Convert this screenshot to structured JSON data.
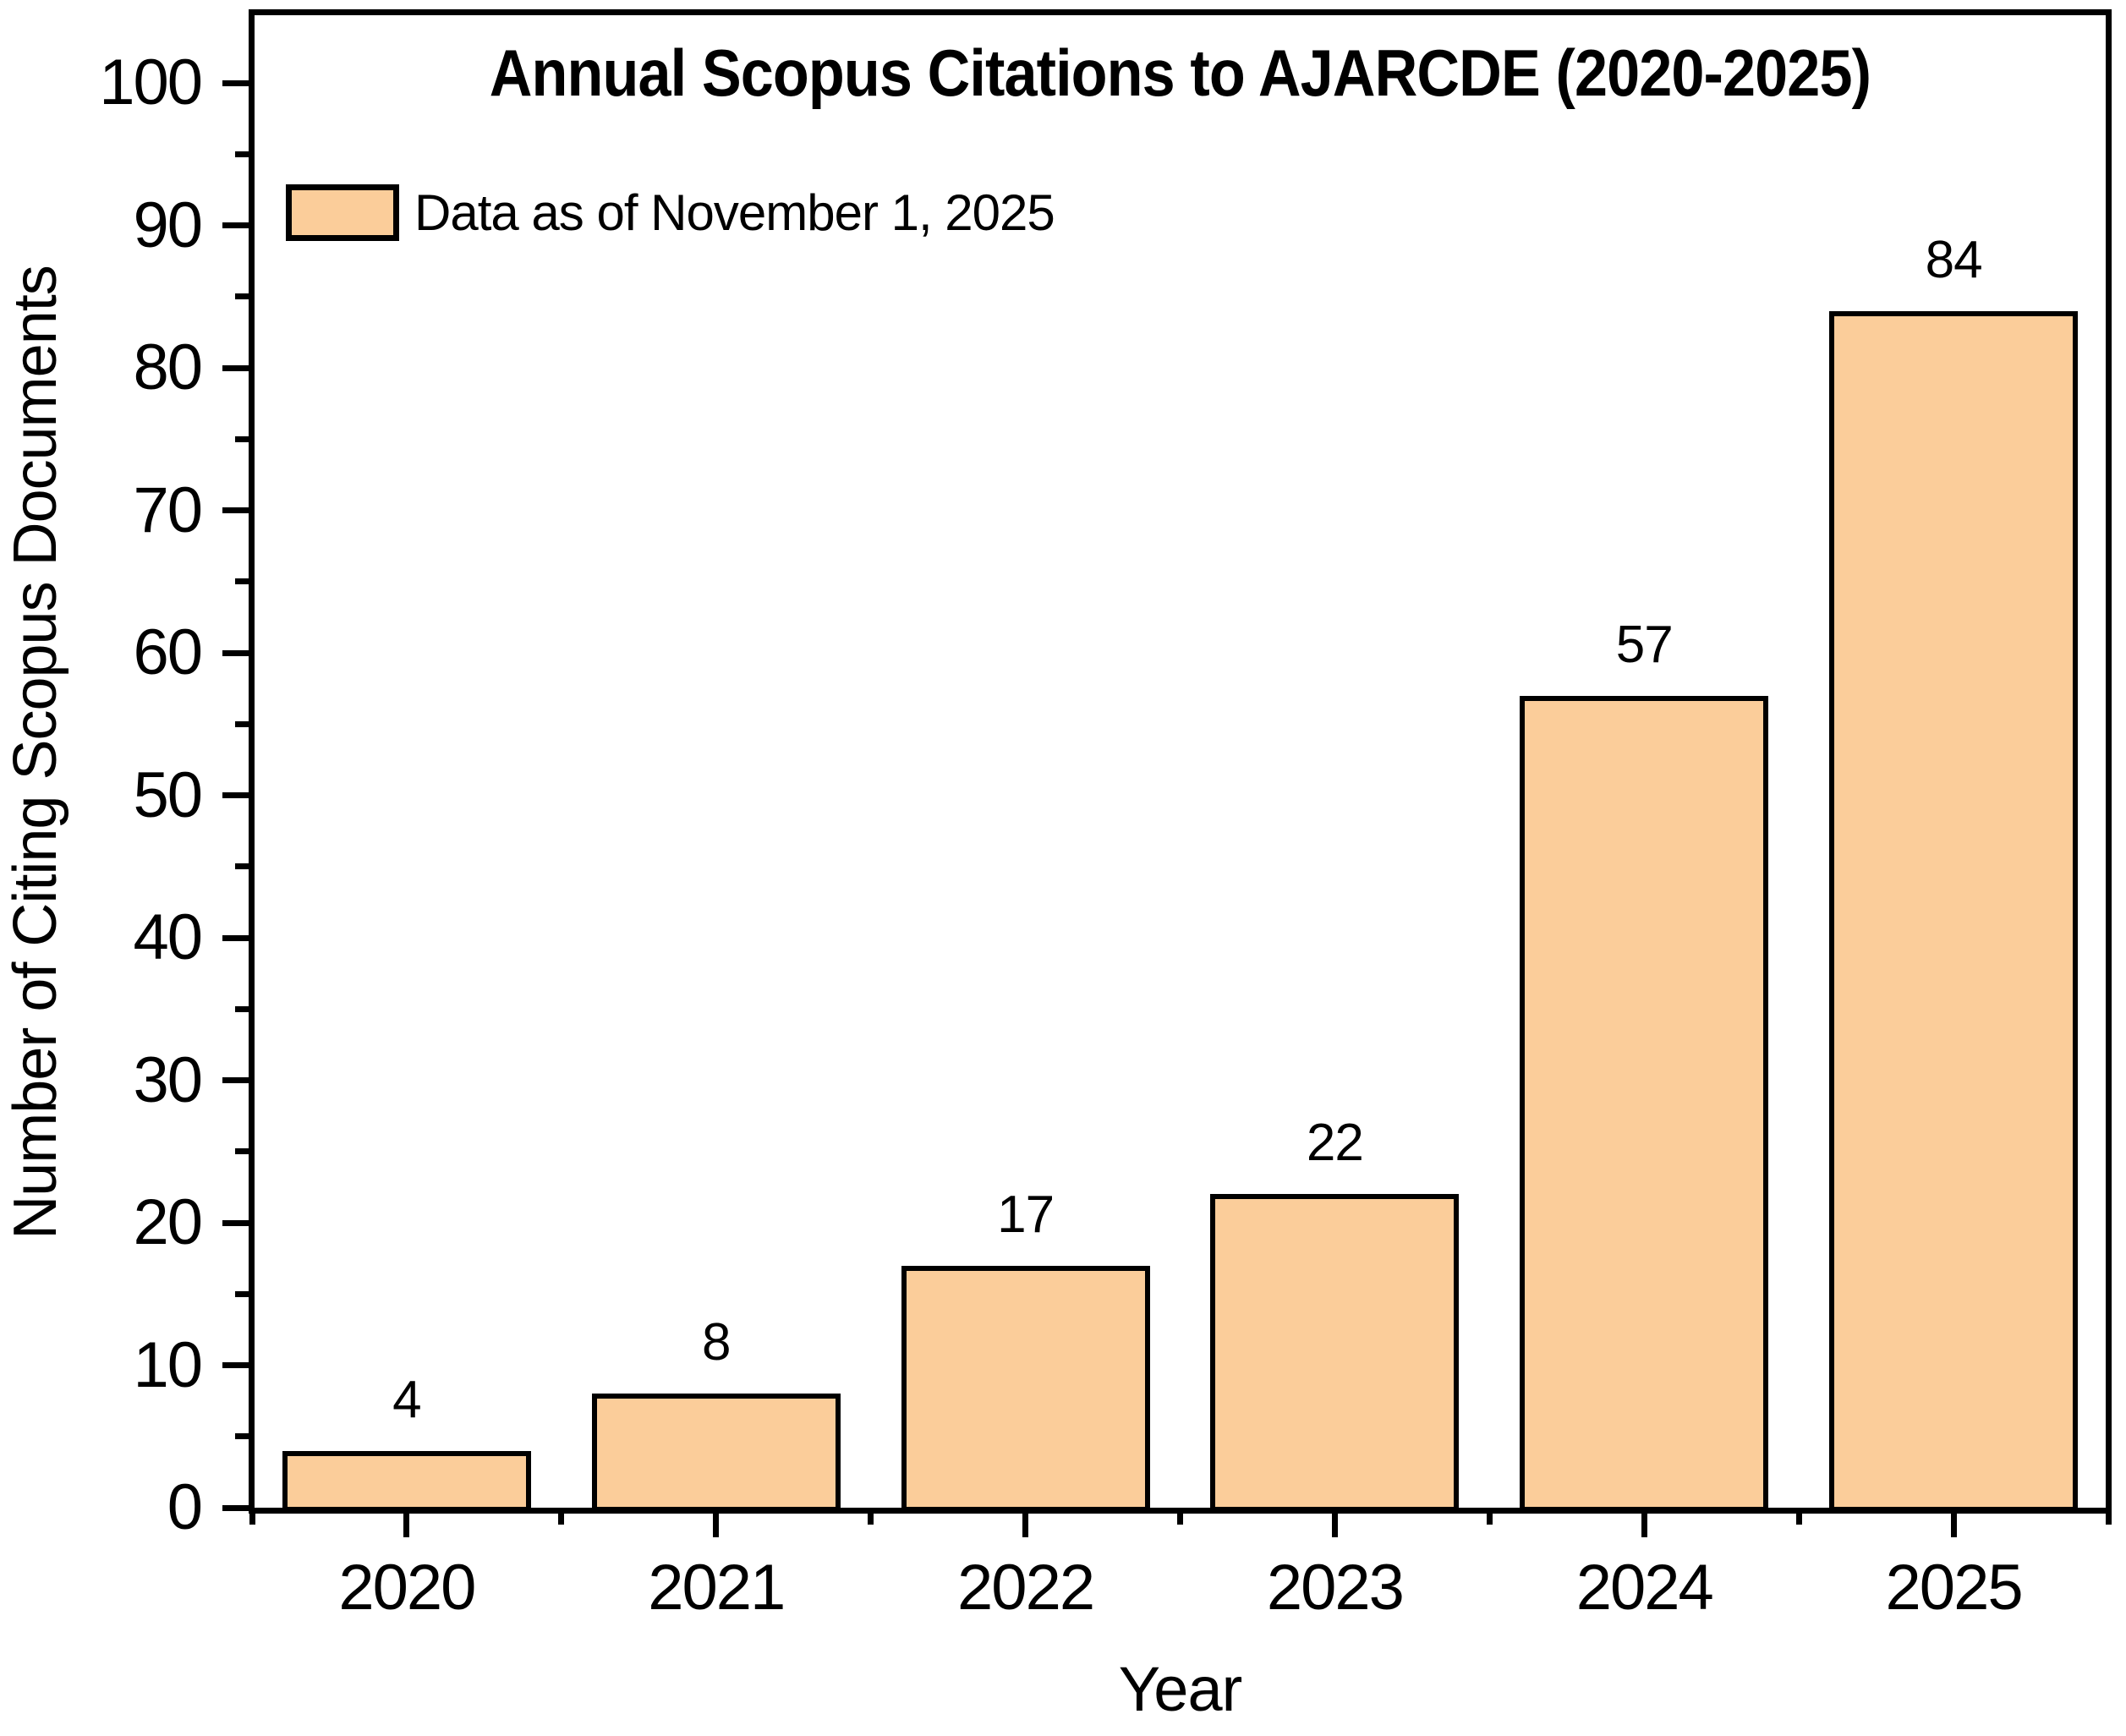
{
  "chart_data": {
    "type": "bar",
    "title": "Annual Scopus Citations to AJARCDE (2020-2025)",
    "categories": [
      "2020",
      "2021",
      "2022",
      "2023",
      "2024",
      "2025"
    ],
    "values": [
      4,
      8,
      17,
      22,
      57,
      84
    ],
    "value_labels": [
      "4",
      "8",
      "17",
      "22",
      "57",
      "84"
    ],
    "xlabel": "Year",
    "ylabel": "Number of Citing Scopus Documents",
    "ylim": [
      0,
      105
    ],
    "yticks": [
      0,
      10,
      20,
      30,
      40,
      50,
      60,
      70,
      80,
      90,
      100
    ],
    "minor_yticks": [
      5,
      15,
      25,
      35,
      45,
      55,
      65,
      75,
      85,
      95
    ],
    "grid": false,
    "legend": {
      "label": "Data as of November 1, 2025",
      "position": "top-left-inside"
    },
    "colors": {
      "bar_fill": "#FBCD9A",
      "bar_border": "#000000",
      "text": "#000000",
      "background": "#FFFFFF"
    }
  }
}
